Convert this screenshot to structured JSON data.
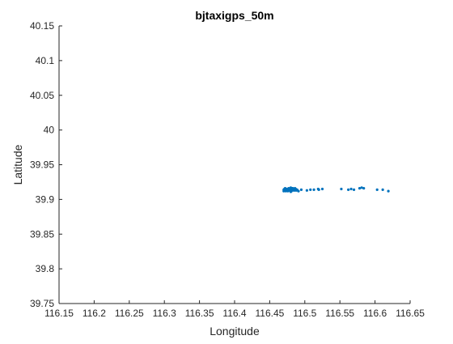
{
  "chart_data": {
    "type": "scatter",
    "title": "bjtaxigps_50m",
    "xlabel": "Longitude",
    "ylabel": "Latitude",
    "xlim": [
      116.15,
      116.65
    ],
    "ylim": [
      39.75,
      40.15
    ],
    "xticks": [
      "116.15",
      "116.2",
      "116.25",
      "116.3",
      "116.35",
      "116.4",
      "116.45",
      "116.5",
      "116.55",
      "116.6",
      "116.65"
    ],
    "yticks": [
      "39.75",
      "39.8",
      "39.85",
      "39.9",
      "39.95",
      "40",
      "40.05",
      "40.1",
      "40.15"
    ],
    "grid": false,
    "legend": "none",
    "marker_color": "#0072BD",
    "axis_color": "#262626",
    "series": [
      {
        "x": [
          116.47,
          116.471,
          116.472,
          116.473,
          116.474,
          116.475,
          116.476,
          116.477,
          116.478,
          116.479,
          116.48,
          116.481,
          116.482,
          116.483,
          116.484,
          116.485,
          116.486,
          116.487,
          116.488,
          116.47,
          116.472,
          116.474,
          116.476,
          116.478,
          116.48,
          116.482,
          116.484,
          116.486,
          116.471,
          116.475,
          116.479,
          116.483,
          116.487,
          116.489,
          116.48,
          116.491,
          116.495,
          116.503,
          116.508,
          116.513,
          116.519,
          116.52,
          116.525,
          116.552,
          116.562,
          116.566,
          116.57,
          116.578,
          116.581,
          116.584,
          116.603,
          116.611,
          116.619
        ],
        "y": [
          39.912,
          39.913,
          39.914,
          39.912,
          39.915,
          39.913,
          39.914,
          39.916,
          39.913,
          39.915,
          39.914,
          39.912,
          39.916,
          39.914,
          39.913,
          39.915,
          39.916,
          39.914,
          39.913,
          39.914,
          39.916,
          39.913,
          39.912,
          39.914,
          39.917,
          39.915,
          39.914,
          39.913,
          39.915,
          39.914,
          39.913,
          39.916,
          39.915,
          39.914,
          39.911,
          39.912,
          39.914,
          39.913,
          39.914,
          39.914,
          39.915,
          39.914,
          39.915,
          39.915,
          39.914,
          39.915,
          39.914,
          39.916,
          39.917,
          39.916,
          39.914,
          39.914,
          39.912
        ]
      }
    ]
  }
}
